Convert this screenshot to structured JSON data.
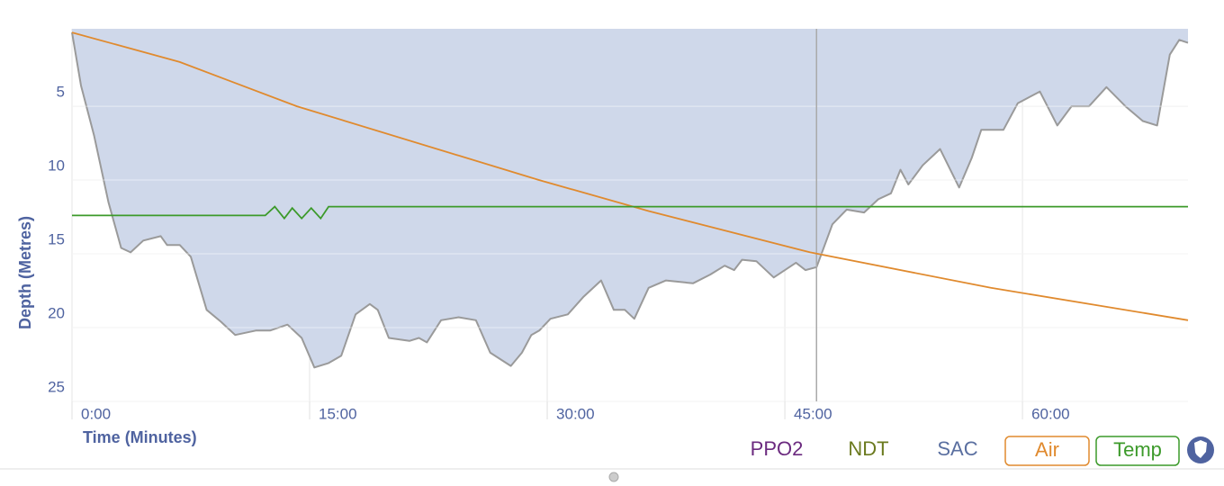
{
  "chart_data": {
    "type": "area",
    "x_label": "Time (Minutes)",
    "y_label": "Depth (Metres)",
    "y_inverted": true,
    "grid": true,
    "area_color": "#cfd8ea",
    "line_color": "#9a9a9a",
    "x": [
      0,
      0.57,
      1.4,
      2.3,
      3.1,
      3.7,
      4.5,
      5.6,
      6.0,
      6.8,
      7.5,
      8.5,
      9.4,
      10.3,
      11.6,
      12.5,
      13.6,
      14.5,
      15.3,
      16.2,
      17.0,
      17.9,
      18.8,
      19.3,
      20.0,
      21.3,
      21.9,
      22.4,
      23.3,
      24.4,
      25.5,
      26.4,
      27.7,
      28.4,
      29.0,
      29.5,
      30.2,
      31.3,
      32.3,
      33.4,
      34.2,
      34.9,
      35.5,
      36.4,
      37.5,
      39.2,
      40.3,
      41.2,
      41.8,
      42.3,
      43.2,
      44.3,
      45.7,
      46.3,
      47.0,
      48.0,
      48.9,
      50.0,
      50.9,
      51.7,
      52.3,
      52.8,
      53.7,
      54.8,
      56.0,
      56.8,
      57.4,
      58.8,
      59.7,
      61.1,
      62.2,
      63.1,
      64.2,
      65.3,
      66.5,
      67.6,
      68.5,
      69.3,
      69.9,
      70.45
    ],
    "values": [
      0,
      3.6,
      7,
      11.5,
      14.6,
      14.9,
      14.1,
      13.8,
      14.4,
      14.4,
      15.2,
      18.8,
      19.6,
      20.5,
      20.2,
      20.2,
      19.8,
      20.7,
      22.7,
      22.4,
      21.9,
      19.1,
      18.4,
      18.8,
      20.7,
      20.9,
      20.7,
      21.0,
      19.5,
      19.3,
      19.5,
      21.7,
      22.6,
      21.7,
      20.5,
      20.2,
      19.4,
      19.1,
      17.9,
      16.8,
      18.8,
      18.8,
      19.4,
      17.3,
      16.8,
      17.0,
      16.4,
      15.8,
      16.1,
      15.4,
      15.5,
      16.6,
      15.6,
      16.1,
      15.9,
      13.0,
      12.0,
      12.2,
      11.3,
      10.9,
      9.3,
      10.3,
      9.0,
      7.9,
      10.5,
      8.5,
      6.6,
      6.6,
      4.8,
      4.0,
      6.3,
      5.0,
      5.0,
      3.7,
      5.0,
      6.0,
      6.3,
      1.5,
      0.5,
      0.7
    ],
    "series": [
      {
        "name": "Air",
        "color": "#e08a2e",
        "x": [
          0,
          6.8,
          14.2,
          29.5,
          36.4,
          46.6,
          58,
          70.45
        ],
        "values": [
          0,
          2.0,
          5.0,
          10.0,
          12.1,
          14.9,
          17.3,
          19.5
        ]
      },
      {
        "name": "Temp",
        "color": "#3c9a2a",
        "x": [
          0,
          12.2,
          12.8,
          13.4,
          13.9,
          14.5,
          15.1,
          15.7,
          16.2,
          70.45
        ],
        "values": [
          12.4,
          12.4,
          11.8,
          12.6,
          11.9,
          12.6,
          11.9,
          12.6,
          11.8,
          11.8
        ]
      }
    ],
    "cursor_x": 47.0,
    "xlim": [
      0,
      70.45
    ],
    "ylim": [
      -0.25,
      25
    ],
    "xticks": [
      {
        "value": 0,
        "label": "0:00"
      },
      {
        "value": 15,
        "label": "15:00"
      },
      {
        "value": 30,
        "label": "30:00"
      },
      {
        "value": 45,
        "label": "45:00"
      },
      {
        "value": 60,
        "label": "60:00"
      }
    ],
    "yticks": [
      5,
      10,
      15,
      20,
      25
    ],
    "toggles": [
      {
        "label": "PPO2",
        "color": "#6b2a7f"
      },
      {
        "label": "NDT",
        "color": "#6b7a1f"
      },
      {
        "label": "SAC",
        "color": "#5a6fa0"
      }
    ]
  }
}
